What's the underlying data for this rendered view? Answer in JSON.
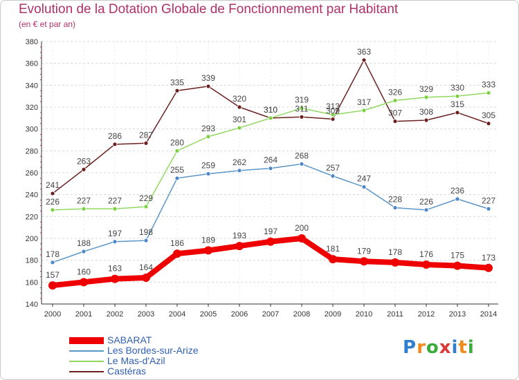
{
  "title": "Evolution de la Dotation Globale de Fonctionnement par Habitant",
  "subtitle": "(en € et par an)",
  "logo": {
    "letters": [
      "P",
      "r",
      "o",
      "x",
      "i",
      "t",
      "i"
    ],
    "colors": [
      "#2f7fd0",
      "#f08a1c",
      "#3caa3c",
      "#d83a3a",
      "#2f7fd0",
      "#f08a1c",
      "#3caa3c"
    ]
  },
  "chart_data": {
    "type": "line",
    "title": "Evolution de la Dotation Globale de Fonctionnement par Habitant",
    "ylim": [
      140,
      380
    ],
    "yticks": [
      140,
      160,
      180,
      200,
      220,
      240,
      260,
      280,
      300,
      320,
      340,
      360,
      380
    ],
    "x": [
      "2000",
      "2001",
      "2002",
      "2003",
      "2004",
      "2005",
      "2006",
      "2007",
      "2008",
      "2009",
      "2010",
      "2011",
      "2012",
      "2013",
      "2014"
    ],
    "grid": "horizontal dashed",
    "legend": "bottom-left",
    "series": [
      {
        "name": "SABARAT",
        "color": "#ee0000",
        "marker": "#ee0000",
        "label_color": "#444444",
        "emphasis": true,
        "values": [
          157,
          160,
          163,
          164,
          186,
          189,
          193,
          197,
          200,
          181,
          179,
          178,
          176,
          175,
          173
        ]
      },
      {
        "name": "Les Bordes-sur-Arize",
        "color": "#5a95c8",
        "marker": "#4a86c8",
        "label_color": "#444444",
        "emphasis": false,
        "values": [
          178,
          188,
          197,
          198,
          255,
          259,
          262,
          264,
          268,
          257,
          247,
          228,
          226,
          236,
          227
        ]
      },
      {
        "name": "Le Mas-d'Azil",
        "color": "#90d860",
        "marker": "#7ad040",
        "label_color": "#444444",
        "emphasis": false,
        "values": [
          226,
          227,
          227,
          229,
          280,
          293,
          301,
          310,
          319,
          313,
          317,
          326,
          329,
          330,
          333
        ]
      },
      {
        "name": "Castéras",
        "color": "#6b1f1f",
        "marker": "#6b1f1f",
        "label_color": "#444444",
        "emphasis": false,
        "values": [
          241,
          263,
          286,
          287,
          335,
          339,
          320,
          310,
          311,
          309,
          363,
          307,
          308,
          315,
          305
        ]
      }
    ]
  }
}
